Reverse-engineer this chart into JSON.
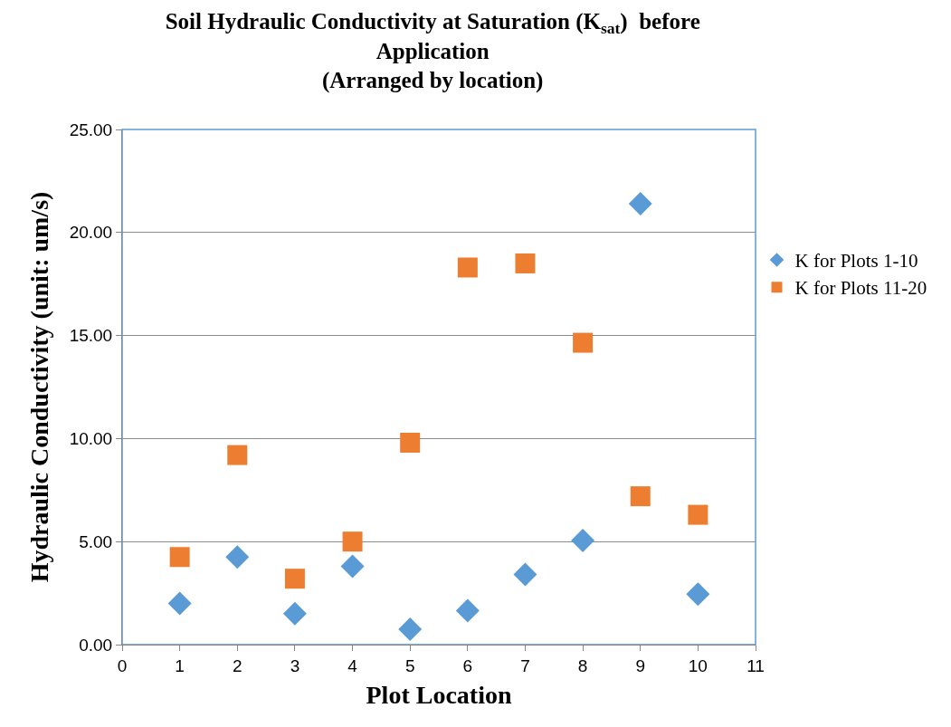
{
  "chart_data": {
    "type": "scatter",
    "title": "Soil Hydraulic Conductivity at Saturation (K$_{sat}$)  before\nApplication\n(Arranged by location)",
    "xlabel": "Plot Location",
    "ylabel": "Hydraulic Conductivity (unit: um/s)",
    "x": [
      1,
      2,
      3,
      4,
      5,
      6,
      7,
      8,
      9,
      10
    ],
    "series": [
      {
        "name": "K for Plots 1-10",
        "color": "#5b9bd5",
        "marker": "diamond",
        "values": [
          2.0,
          4.25,
          1.5,
          3.8,
          0.75,
          1.65,
          3.4,
          5.05,
          21.4,
          2.45
        ]
      },
      {
        "name": "K for Plots 11-20",
        "color": "#ed7d31",
        "marker": "square",
        "values": [
          4.25,
          9.2,
          3.2,
          5.0,
          9.8,
          18.3,
          18.5,
          14.65,
          7.2,
          6.3
        ]
      }
    ],
    "xlim": [
      0,
      11
    ],
    "xticks": [
      0,
      1,
      2,
      3,
      4,
      5,
      6,
      7,
      8,
      9,
      10,
      11
    ],
    "ylim": [
      0,
      25
    ],
    "yticks": [
      {
        "value": 0,
        "label": "0.00"
      },
      {
        "value": 5,
        "label": "5.00"
      },
      {
        "value": 10,
        "label": "10.00"
      },
      {
        "value": 15,
        "label": "15.00"
      },
      {
        "value": 20,
        "label": "20.00"
      },
      {
        "value": 25,
        "label": "25.00"
      }
    ],
    "grid": "y",
    "legend": "right"
  }
}
